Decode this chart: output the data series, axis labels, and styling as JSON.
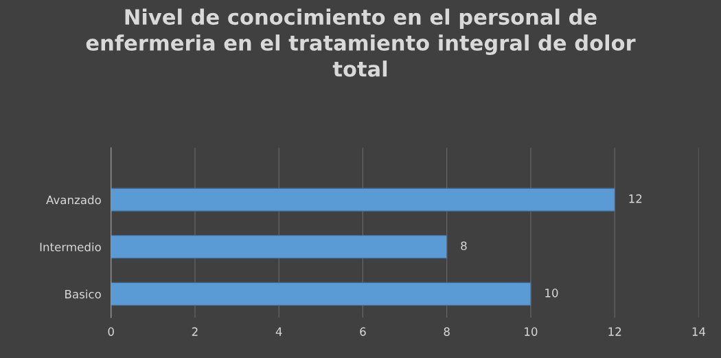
{
  "chart_data": {
    "type": "bar",
    "orientation": "horizontal",
    "title": "Nivel de conocimiento en el personal de enfermeria en el tratamiento integral de dolor total",
    "categories": [
      "Avanzado",
      "Intermedio",
      "Basico"
    ],
    "values": [
      12,
      8,
      10
    ],
    "color": "#5b9bd5",
    "xlim": [
      0,
      14
    ],
    "xticks": [
      0,
      2,
      4,
      6,
      8,
      10,
      12,
      14
    ],
    "grid": "x",
    "data_labels": true
  }
}
